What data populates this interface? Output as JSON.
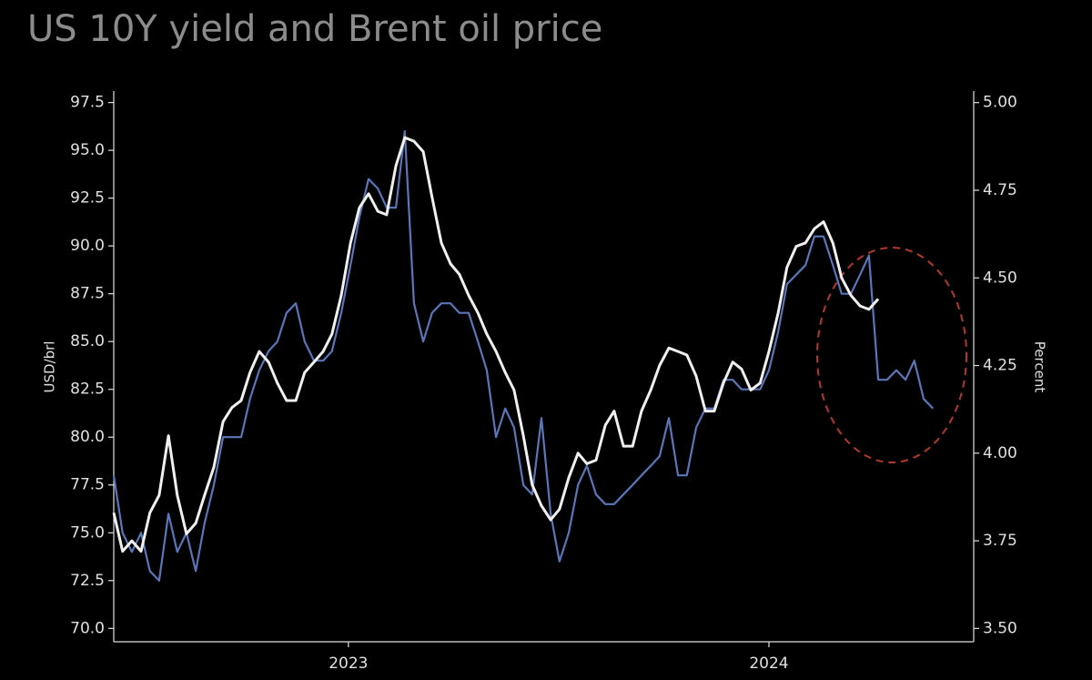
{
  "chart_data": {
    "type": "line",
    "title": "US 10Y yield and Brent oil price",
    "y_label": "USD/brl",
    "y2_label": "Percent",
    "x": [
      2022.442,
      2022.463,
      2022.485,
      2022.507,
      2022.528,
      2022.55,
      2022.572,
      2022.593,
      2022.615,
      2022.637,
      2022.658,
      2022.68,
      2022.702,
      2022.723,
      2022.745,
      2022.766,
      2022.788,
      2022.81,
      2022.831,
      2022.853,
      2022.875,
      2022.896,
      2022.918,
      2022.94,
      2022.961,
      2022.983,
      2023.005,
      2023.026,
      2023.048,
      2023.07,
      2023.091,
      2023.113,
      2023.134,
      2023.156,
      2023.178,
      2023.199,
      2023.221,
      2023.243,
      2023.264,
      2023.286,
      2023.308,
      2023.329,
      2023.351,
      2023.373,
      2023.394,
      2023.416,
      2023.437,
      2023.459,
      2023.481,
      2023.502,
      2023.524,
      2023.546,
      2023.567,
      2023.589,
      2023.611,
      2023.632,
      2023.654,
      2023.676,
      2023.697,
      2023.719,
      2023.74,
      2023.762,
      2023.784,
      2023.805,
      2023.827,
      2023.849,
      2023.87,
      2023.892,
      2023.914,
      2023.935,
      2023.957,
      2023.979,
      2024.0,
      2024.022,
      2024.043,
      2024.065,
      2024.087,
      2024.108,
      2024.13,
      2024.152,
      2024.173,
      2024.195,
      2024.217,
      2024.238,
      2024.26,
      2024.281,
      2024.303,
      2024.325,
      2024.346,
      2024.368,
      2024.39
    ],
    "series": [
      {
        "color": "#5b76b8",
        "axis": "y",
        "values": [
          78,
          75,
          74,
          75,
          73,
          72.5,
          76,
          74,
          75,
          73,
          75.5,
          77.5,
          80,
          80,
          80,
          82,
          83.5,
          84.5,
          85,
          86.5,
          87,
          85,
          84,
          84,
          84.5,
          86.5,
          89,
          91.5,
          93.5,
          93,
          92,
          92,
          96,
          87,
          85,
          86.5,
          87,
          87,
          86.5,
          86.5,
          85,
          83.5,
          80,
          81.5,
          80.5,
          77.5,
          77,
          81,
          76,
          73.5,
          75,
          77.5,
          78.5,
          77,
          76.5,
          76.5,
          77,
          77.5,
          78,
          78.5,
          79,
          81,
          78,
          78,
          80.5,
          81.5,
          81.5,
          83,
          83,
          82.5,
          82.5,
          82.5,
          83.5,
          85.5,
          88,
          88.5,
          89,
          90.5,
          90.5,
          89,
          87.5,
          87.5,
          88.5,
          89.5,
          83,
          83,
          83.5,
          83,
          84,
          82,
          81.5
        ]
      },
      {
        "color": "#f0f0f0",
        "axis": "y2",
        "values": [
          3.83,
          3.72,
          3.75,
          3.72,
          3.83,
          3.88,
          4.05,
          3.88,
          3.77,
          3.8,
          3.88,
          3.96,
          4.09,
          4.13,
          4.15,
          4.23,
          4.29,
          4.26,
          4.2,
          4.15,
          4.15,
          4.23,
          4.26,
          4.29,
          4.34,
          4.45,
          4.6,
          4.7,
          4.74,
          4.69,
          4.68,
          4.82,
          4.9,
          4.89,
          4.86,
          4.73,
          4.6,
          4.54,
          4.51,
          4.45,
          4.4,
          4.34,
          4.29,
          4.23,
          4.18,
          4.05,
          3.91,
          3.85,
          3.81,
          3.84,
          3.93,
          4.0,
          3.97,
          3.98,
          4.08,
          4.12,
          4.02,
          4.02,
          4.12,
          4.18,
          4.25,
          4.3,
          4.29,
          4.28,
          4.22,
          4.12,
          4.12,
          4.2,
          4.26,
          4.24,
          4.18,
          4.2,
          4.29,
          4.4,
          4.53,
          4.59,
          4.6,
          4.64,
          4.66,
          4.6,
          4.5,
          4.45,
          4.42,
          4.41,
          4.44,
          null,
          null,
          null,
          null,
          null,
          null
        ]
      }
    ],
    "xlim": [
      2022.442,
      2024.487
    ],
    "xticks": [
      {
        "value": 2023,
        "label": "2023"
      },
      {
        "value": 2024,
        "label": "2024"
      }
    ],
    "ylim": [
      69.3,
      98.1
    ],
    "yticks": [
      {
        "value": 70,
        "label": "70.0"
      },
      72.5,
      {
        "value": 75,
        "label": "75.0"
      },
      77.5,
      {
        "value": 80,
        "label": "80.0"
      },
      82.5,
      {
        "value": 85,
        "label": "85.0"
      },
      87.5,
      {
        "value": 90,
        "label": "90.0"
      },
      92.5,
      {
        "value": 95,
        "label": "95.0"
      },
      97.5
    ],
    "y2lim": [
      3.462,
      5.033
    ],
    "y2ticks": [
      {
        "value": 3.5,
        "label": "3.50"
      },
      3.75,
      {
        "value": 4,
        "label": "4.00"
      },
      4.25,
      {
        "value": 4.5,
        "label": "4.50"
      },
      4.75,
      {
        "value": 5,
        "label": "5.00"
      }
    ],
    "grid": false
  }
}
